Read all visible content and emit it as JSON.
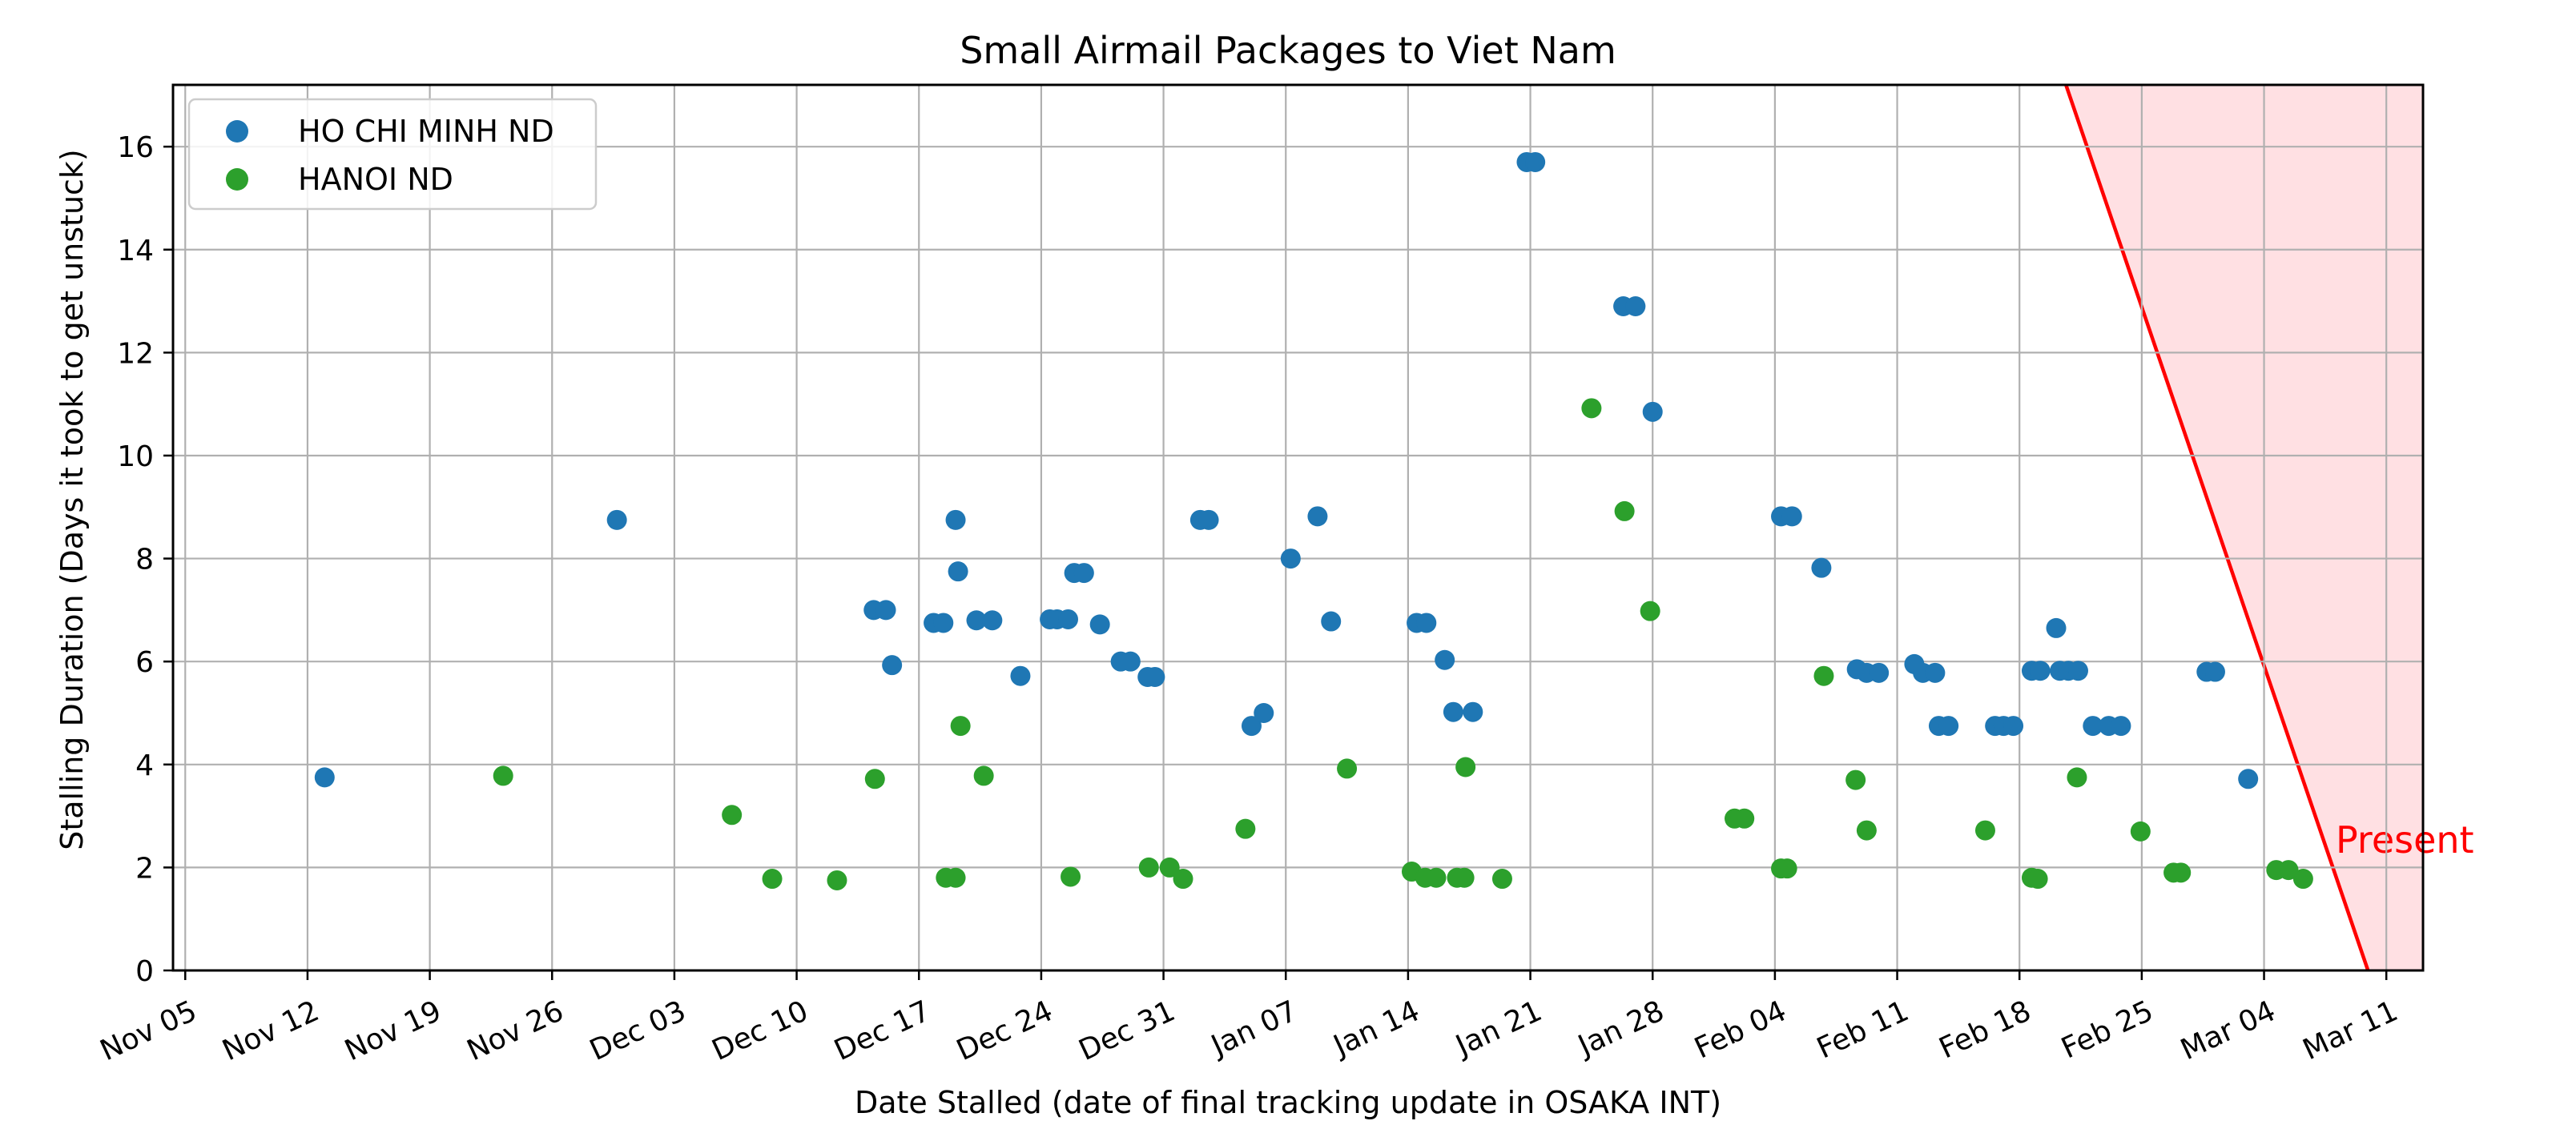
{
  "chart_data": {
    "type": "scatter",
    "title": "Small Airmail Packages to Viet Nam",
    "xlabel": "Date Stalled (date of final tracking update in OSAKA INT)",
    "ylabel": "Stalling Duration (Days it took to get unstuck)",
    "x_ticks": [
      "Nov 05",
      "Nov 12",
      "Nov 19",
      "Nov 26",
      "Dec 03",
      "Dec 10",
      "Dec 17",
      "Dec 24",
      "Dec 31",
      "Jan 07",
      "Jan 14",
      "Jan 21",
      "Jan 28",
      "Feb 04",
      "Feb 11",
      "Feb 18",
      "Feb 25",
      "Mar 04",
      "Mar 11"
    ],
    "y_ticks": [
      "0",
      "2",
      "4",
      "6",
      "8",
      "10",
      "12",
      "14",
      "16"
    ],
    "xlim": [
      -0.1,
      18.3
    ],
    "ylim": [
      0,
      17.2
    ],
    "grid": true,
    "legend_position": "top-left",
    "series": [
      {
        "name": "HO CHI MINH ND",
        "color": "#1f77b4",
        "points": [
          [
            1.14,
            3.75
          ],
          [
            3.53,
            8.75
          ],
          [
            5.63,
            7.0
          ],
          [
            5.73,
            7.0
          ],
          [
            5.78,
            5.93
          ],
          [
            6.12,
            6.75
          ],
          [
            6.2,
            6.75
          ],
          [
            6.3,
            8.75
          ],
          [
            6.32,
            7.75
          ],
          [
            6.47,
            6.8
          ],
          [
            6.6,
            6.8
          ],
          [
            6.83,
            5.72
          ],
          [
            7.07,
            6.82
          ],
          [
            7.13,
            6.82
          ],
          [
            7.22,
            6.82
          ],
          [
            7.27,
            7.72
          ],
          [
            7.35,
            7.72
          ],
          [
            7.48,
            6.72
          ],
          [
            7.65,
            6.0
          ],
          [
            7.73,
            6.0
          ],
          [
            7.87,
            5.7
          ],
          [
            7.93,
            5.7
          ],
          [
            8.3,
            8.75
          ],
          [
            8.37,
            8.75
          ],
          [
            8.72,
            4.75
          ],
          [
            8.82,
            5.0
          ],
          [
            9.04,
            8.0
          ],
          [
            9.26,
            8.82
          ],
          [
            9.37,
            6.78
          ],
          [
            10.07,
            6.75
          ],
          [
            10.15,
            6.75
          ],
          [
            10.3,
            6.03
          ],
          [
            10.37,
            5.02
          ],
          [
            10.53,
            5.02
          ],
          [
            10.97,
            15.7
          ],
          [
            11.04,
            15.7
          ],
          [
            11.76,
            12.9
          ],
          [
            11.86,
            12.9
          ],
          [
            12.0,
            10.85
          ],
          [
            13.05,
            8.82
          ],
          [
            13.14,
            8.82
          ],
          [
            13.38,
            7.82
          ],
          [
            13.67,
            5.85
          ],
          [
            13.75,
            5.78
          ],
          [
            13.85,
            5.78
          ],
          [
            14.14,
            5.95
          ],
          [
            14.21,
            5.78
          ],
          [
            14.31,
            5.78
          ],
          [
            14.34,
            4.75
          ],
          [
            14.42,
            4.75
          ],
          [
            14.8,
            4.75
          ],
          [
            14.87,
            4.75
          ],
          [
            14.95,
            4.75
          ],
          [
            15.1,
            5.82
          ],
          [
            15.17,
            5.82
          ],
          [
            15.3,
            6.65
          ],
          [
            15.33,
            5.82
          ],
          [
            15.4,
            5.82
          ],
          [
            15.48,
            5.82
          ],
          [
            15.6,
            4.75
          ],
          [
            15.73,
            4.75
          ],
          [
            15.83,
            4.75
          ],
          [
            16.53,
            5.8
          ],
          [
            16.6,
            5.8
          ],
          [
            16.87,
            3.72
          ]
        ]
      },
      {
        "name": "HANOI ND",
        "color": "#2ca02c",
        "points": [
          [
            2.6,
            3.78
          ],
          [
            4.47,
            3.02
          ],
          [
            4.8,
            1.78
          ],
          [
            5.33,
            1.75
          ],
          [
            5.64,
            3.72
          ],
          [
            6.22,
            1.8
          ],
          [
            6.3,
            1.8
          ],
          [
            6.34,
            4.75
          ],
          [
            6.53,
            3.78
          ],
          [
            7.24,
            1.82
          ],
          [
            7.88,
            2.0
          ],
          [
            8.05,
            2.0
          ],
          [
            8.16,
            1.78
          ],
          [
            8.67,
            2.75
          ],
          [
            9.5,
            3.92
          ],
          [
            10.03,
            1.92
          ],
          [
            10.14,
            1.8
          ],
          [
            10.23,
            1.8
          ],
          [
            10.4,
            1.8
          ],
          [
            10.46,
            1.8
          ],
          [
            10.47,
            3.95
          ],
          [
            10.77,
            1.78
          ],
          [
            11.5,
            10.92
          ],
          [
            11.77,
            8.92
          ],
          [
            11.98,
            6.98
          ],
          [
            12.67,
            2.95
          ],
          [
            12.75,
            2.95
          ],
          [
            13.05,
            1.98
          ],
          [
            13.1,
            1.98
          ],
          [
            13.4,
            5.72
          ],
          [
            13.66,
            3.7
          ],
          [
            13.75,
            2.72
          ],
          [
            14.72,
            2.72
          ],
          [
            15.1,
            1.8
          ],
          [
            15.15,
            1.78
          ],
          [
            15.47,
            3.75
          ],
          [
            15.99,
            2.7
          ],
          [
            16.26,
            1.9
          ],
          [
            16.32,
            1.9
          ],
          [
            17.1,
            1.95
          ],
          [
            17.2,
            1.95
          ],
          [
            17.32,
            1.78
          ]
        ]
      }
    ],
    "annotation": {
      "label": "Present",
      "color": "#ff0000",
      "line_from": [
        15.38,
        17.2
      ],
      "line_to": [
        17.85,
        0
      ]
    }
  }
}
